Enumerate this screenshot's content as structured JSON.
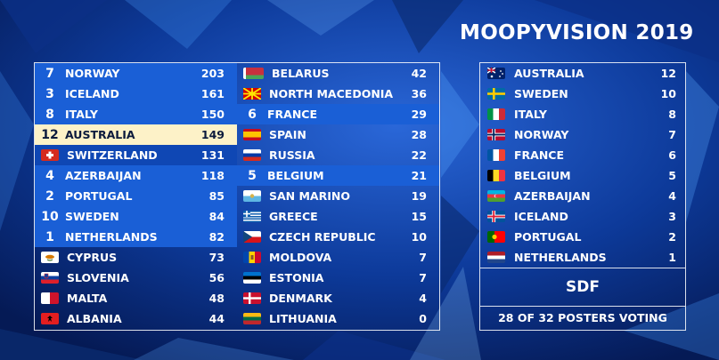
{
  "title": "MOOPYVISION 2019",
  "colors": {
    "highlight": "#1a5fd6",
    "top_highlight": "#fdf2c8",
    "background": "#0a2a6e"
  },
  "scoreboard": {
    "left": [
      {
        "pts": "7",
        "name": "NORWAY",
        "score": "203",
        "flag": "norway-flag-icon"
      },
      {
        "pts": "3",
        "name": "ICELAND",
        "score": "161",
        "flag": "iceland-flag-icon"
      },
      {
        "pts": "8",
        "name": "ITALY",
        "score": "150",
        "flag": "italy-flag-icon"
      },
      {
        "pts": "12",
        "name": "AUSTRALIA",
        "score": "149",
        "flag": "australia-flag-icon"
      },
      {
        "pts": "",
        "name": "SWITZERLAND",
        "score": "131",
        "flag": "switzerland-flag-icon"
      },
      {
        "pts": "4",
        "name": "AZERBAIJAN",
        "score": "118",
        "flag": "azerbaijan-flag-icon"
      },
      {
        "pts": "2",
        "name": "PORTUGAL",
        "score": "85",
        "flag": "portugal-flag-icon"
      },
      {
        "pts": "10",
        "name": "SWEDEN",
        "score": "84",
        "flag": "sweden-flag-icon"
      },
      {
        "pts": "1",
        "name": "NETHERLANDS",
        "score": "82",
        "flag": "netherlands-flag-icon"
      },
      {
        "pts": "",
        "name": "CYPRUS",
        "score": "73",
        "flag": "cyprus-flag-icon"
      },
      {
        "pts": "",
        "name": "SLOVENIA",
        "score": "56",
        "flag": "slovenia-flag-icon"
      },
      {
        "pts": "",
        "name": "MALTA",
        "score": "48",
        "flag": "malta-flag-icon"
      },
      {
        "pts": "",
        "name": "ALBANIA",
        "score": "44",
        "flag": "albania-flag-icon"
      }
    ],
    "right": [
      {
        "pts": "",
        "name": "BELARUS",
        "score": "42",
        "flag": "belarus-flag-icon"
      },
      {
        "pts": "",
        "name": "NORTH MACEDONIA",
        "score": "36",
        "flag": "north-macedonia-flag-icon"
      },
      {
        "pts": "6",
        "name": "FRANCE",
        "score": "29",
        "flag": "france-flag-icon"
      },
      {
        "pts": "",
        "name": "SPAIN",
        "score": "28",
        "flag": "spain-flag-icon"
      },
      {
        "pts": "",
        "name": "RUSSIA",
        "score": "22",
        "flag": "russia-flag-icon"
      },
      {
        "pts": "5",
        "name": "BELGIUM",
        "score": "21",
        "flag": "belgium-flag-icon"
      },
      {
        "pts": "",
        "name": "SAN MARINO",
        "score": "19",
        "flag": "san-marino-flag-icon"
      },
      {
        "pts": "",
        "name": "GREECE",
        "score": "15",
        "flag": "greece-flag-icon"
      },
      {
        "pts": "",
        "name": "CZECH REPUBLIC",
        "score": "10",
        "flag": "czech-republic-flag-icon"
      },
      {
        "pts": "",
        "name": "MOLDOVA",
        "score": "7",
        "flag": "moldova-flag-icon"
      },
      {
        "pts": "",
        "name": "ESTONIA",
        "score": "7",
        "flag": "estonia-flag-icon"
      },
      {
        "pts": "",
        "name": "DENMARK",
        "score": "4",
        "flag": "denmark-flag-icon"
      },
      {
        "pts": "",
        "name": "LITHUANIA",
        "score": "0",
        "flag": "lithuania-flag-icon"
      }
    ]
  },
  "votes": [
    {
      "name": "AUSTRALIA",
      "points": "12",
      "flag": "australia-flag-icon"
    },
    {
      "name": "SWEDEN",
      "points": "10",
      "flag": "sweden-flag-icon"
    },
    {
      "name": "ITALY",
      "points": "8",
      "flag": "italy-flag-icon"
    },
    {
      "name": "NORWAY",
      "points": "7",
      "flag": "norway-flag-icon"
    },
    {
      "name": "FRANCE",
      "points": "6",
      "flag": "france-flag-icon"
    },
    {
      "name": "BELGIUM",
      "points": "5",
      "flag": "belgium-flag-icon"
    },
    {
      "name": "AZERBAIJAN",
      "points": "4",
      "flag": "azerbaijan-flag-icon"
    },
    {
      "name": "ICELAND",
      "points": "3",
      "flag": "iceland-flag-icon"
    },
    {
      "name": "PORTUGAL",
      "points": "2",
      "flag": "portugal-flag-icon"
    },
    {
      "name": "NETHERLANDS",
      "points": "1",
      "flag": "netherlands-flag-icon"
    }
  ],
  "voter": "SDF",
  "voting_status": "28 OF 32 POSTERS VOTING"
}
